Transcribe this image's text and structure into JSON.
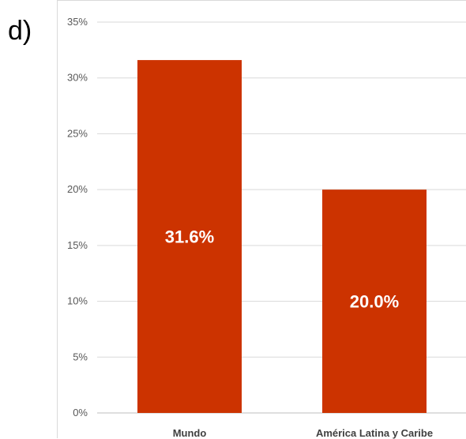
{
  "panel_label": "d)",
  "chart_data": {
    "type": "bar",
    "categories": [
      "Mundo",
      "América Latina y Caribe"
    ],
    "values": [
      31.6,
      20.0
    ],
    "data_labels": [
      "31.6%",
      "20.0%"
    ],
    "ylim": [
      0,
      35
    ],
    "yticks": [
      0,
      5,
      10,
      15,
      20,
      25,
      30,
      35
    ],
    "ytick_labels": [
      "0%",
      "5%",
      "10%",
      "15%",
      "20%",
      "25%",
      "30%",
      "35%"
    ],
    "grid": true,
    "colors": {
      "bar": "#CC3300",
      "grid": "#d9d9d9",
      "axis": "#bfbfbf"
    }
  }
}
